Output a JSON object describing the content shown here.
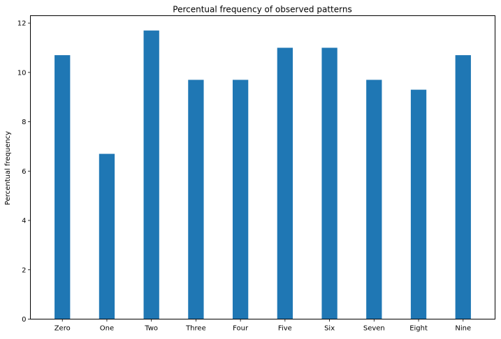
{
  "chart_data": {
    "type": "bar",
    "title": "Percentual frequency of observed patterns",
    "xlabel": "",
    "ylabel": "Percentual frequency",
    "categories": [
      "Zero",
      "One",
      "Two",
      "Three",
      "Four",
      "Five",
      "Six",
      "Seven",
      "Eight",
      "Nine"
    ],
    "values": [
      10.7,
      6.7,
      11.7,
      9.7,
      9.7,
      11.0,
      11.0,
      9.7,
      9.3,
      10.7
    ],
    "ylim": [
      0,
      12.3
    ],
    "yticks": [
      0,
      2,
      4,
      6,
      8,
      10,
      12
    ],
    "grid": false,
    "legend": "none",
    "bar_color": "#1f77b4"
  }
}
